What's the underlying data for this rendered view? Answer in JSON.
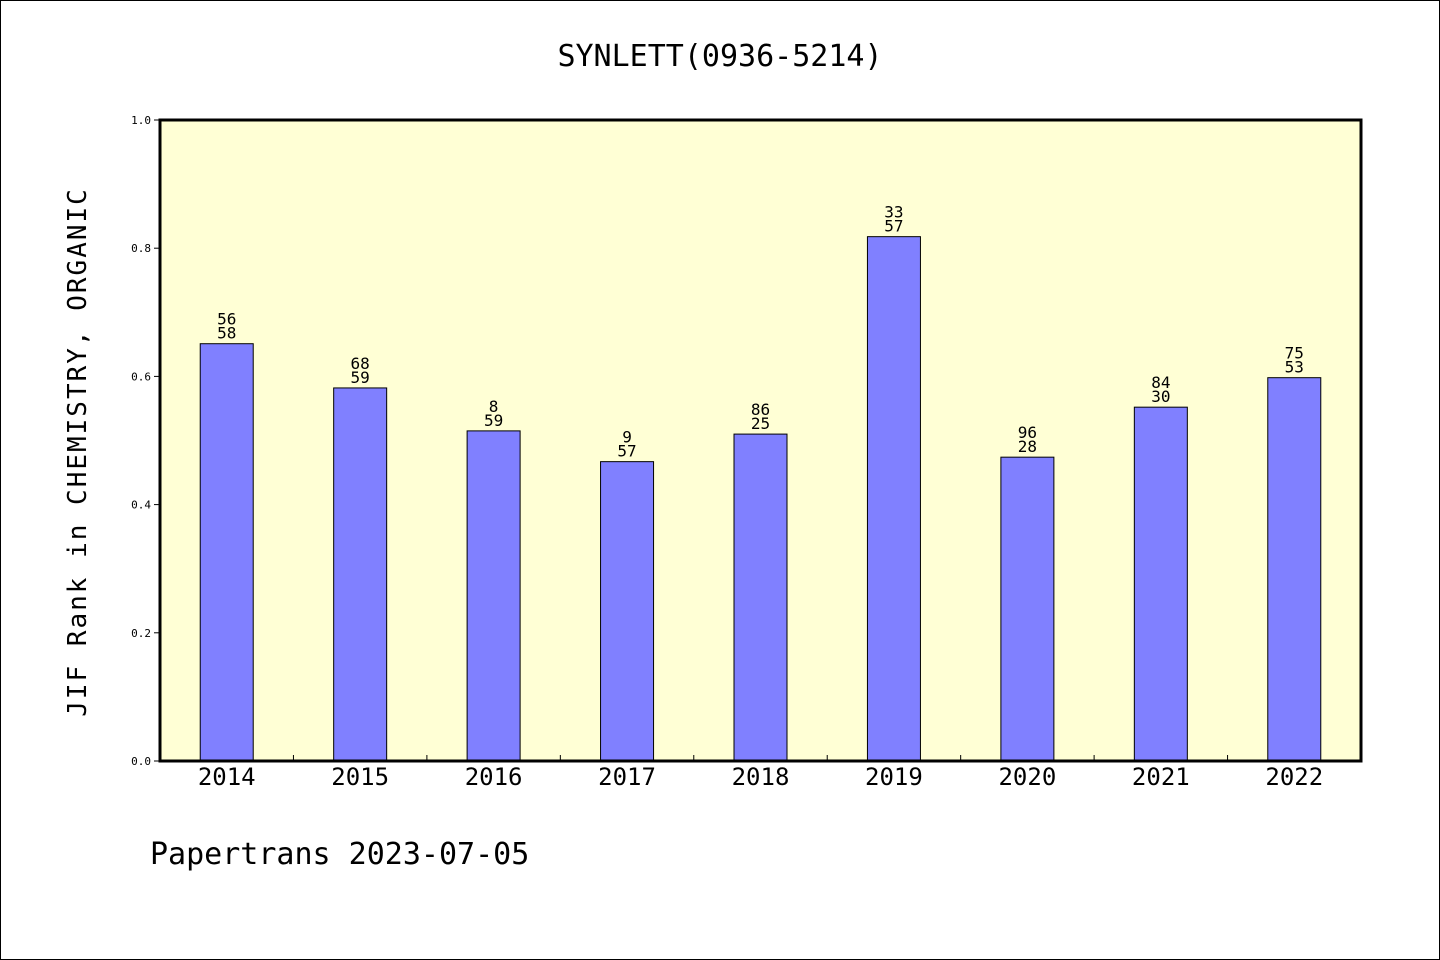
{
  "chart_data": {
    "type": "bar",
    "title": "SYNLETT(0936-5214)",
    "ylabel": "JIF Rank in CHEMISTRY, ORGANIC",
    "xlabel": "",
    "ylim": [
      0,
      1.0
    ],
    "yticks": [
      "0.0",
      "0.2",
      "0.4",
      "0.6",
      "0.8",
      "1.0"
    ],
    "categories": [
      "2014",
      "2015",
      "2016",
      "2017",
      "2018",
      "2019",
      "2020",
      "2021",
      "2022"
    ],
    "values": [
      0.651,
      0.582,
      0.515,
      0.467,
      0.51,
      0.818,
      0.474,
      0.552,
      0.598
    ],
    "data_labels": [
      [
        "56",
        "58"
      ],
      [
        "68",
        "59"
      ],
      [
        "8",
        "59"
      ],
      [
        "9",
        "57"
      ],
      [
        "86",
        "25"
      ],
      [
        "33",
        "57"
      ],
      [
        "96",
        "28"
      ],
      [
        "84",
        "30"
      ],
      [
        "75",
        "53"
      ]
    ],
    "grid": false,
    "colors": {
      "bar": "#8080ff",
      "plot_bg": "#ffffd5",
      "axis": "#000000"
    }
  },
  "footer": "Papertrans 2023-07-05"
}
